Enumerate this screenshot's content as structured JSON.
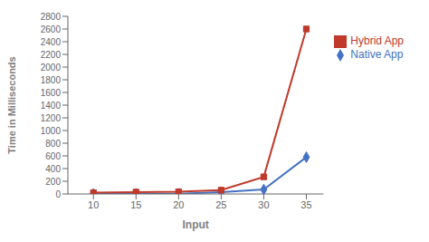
{
  "chart_data": {
    "type": "line",
    "xlabel": "Input",
    "ylabel": "Time in Milliseconds",
    "x": [
      10,
      15,
      20,
      25,
      30,
      35
    ],
    "series": [
      {
        "name": "Native App",
        "color": "#4472C4",
        "marker": "diamond",
        "values": [
          2,
          3,
          4,
          30,
          70,
          580
        ]
      },
      {
        "name": "Hybrid App",
        "color": "#C0392B",
        "marker": "square",
        "values": [
          20,
          30,
          35,
          60,
          270,
          2600
        ]
      }
    ],
    "xlim": [
      7,
      37
    ],
    "xticks": [
      10,
      15,
      20,
      25,
      30,
      35
    ],
    "ylim": [
      0,
      2800
    ],
    "yticks": [
      0,
      200,
      400,
      600,
      800,
      1000,
      1200,
      1400,
      1600,
      1800,
      2000,
      2200,
      2400,
      2600,
      2800
    ],
    "grid": false,
    "legend": "right"
  }
}
